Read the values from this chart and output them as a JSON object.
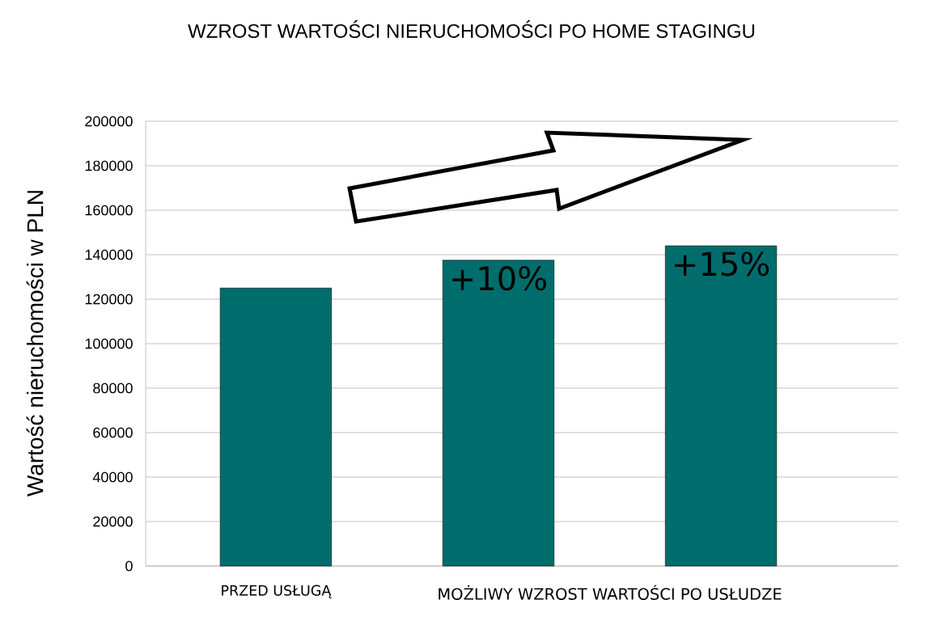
{
  "chart_data": {
    "type": "bar",
    "title": "WZROST WARTOŚCI NIERUCHOMOŚCI PO HOME STAGINGU",
    "ylabel": "Wartość nieruchomości w PLN",
    "categories": [
      "PRZED USŁUGĄ",
      null,
      null
    ],
    "values": [
      125000,
      137500,
      144000
    ],
    "color": "#006d6d",
    "ylim": [
      0,
      200000
    ],
    "yticks": [
      0,
      20000,
      40000,
      60000,
      80000,
      100000,
      120000,
      140000,
      160000,
      180000,
      200000
    ],
    "grid": "y",
    "annotations": [
      "MOŻLIWY WZROST WARTOŚCI PO USŁUDZE",
      {
        "text": "+10%",
        "y": 137500
      },
      {
        "text": "+15%",
        "y": 144000
      }
    ]
  }
}
